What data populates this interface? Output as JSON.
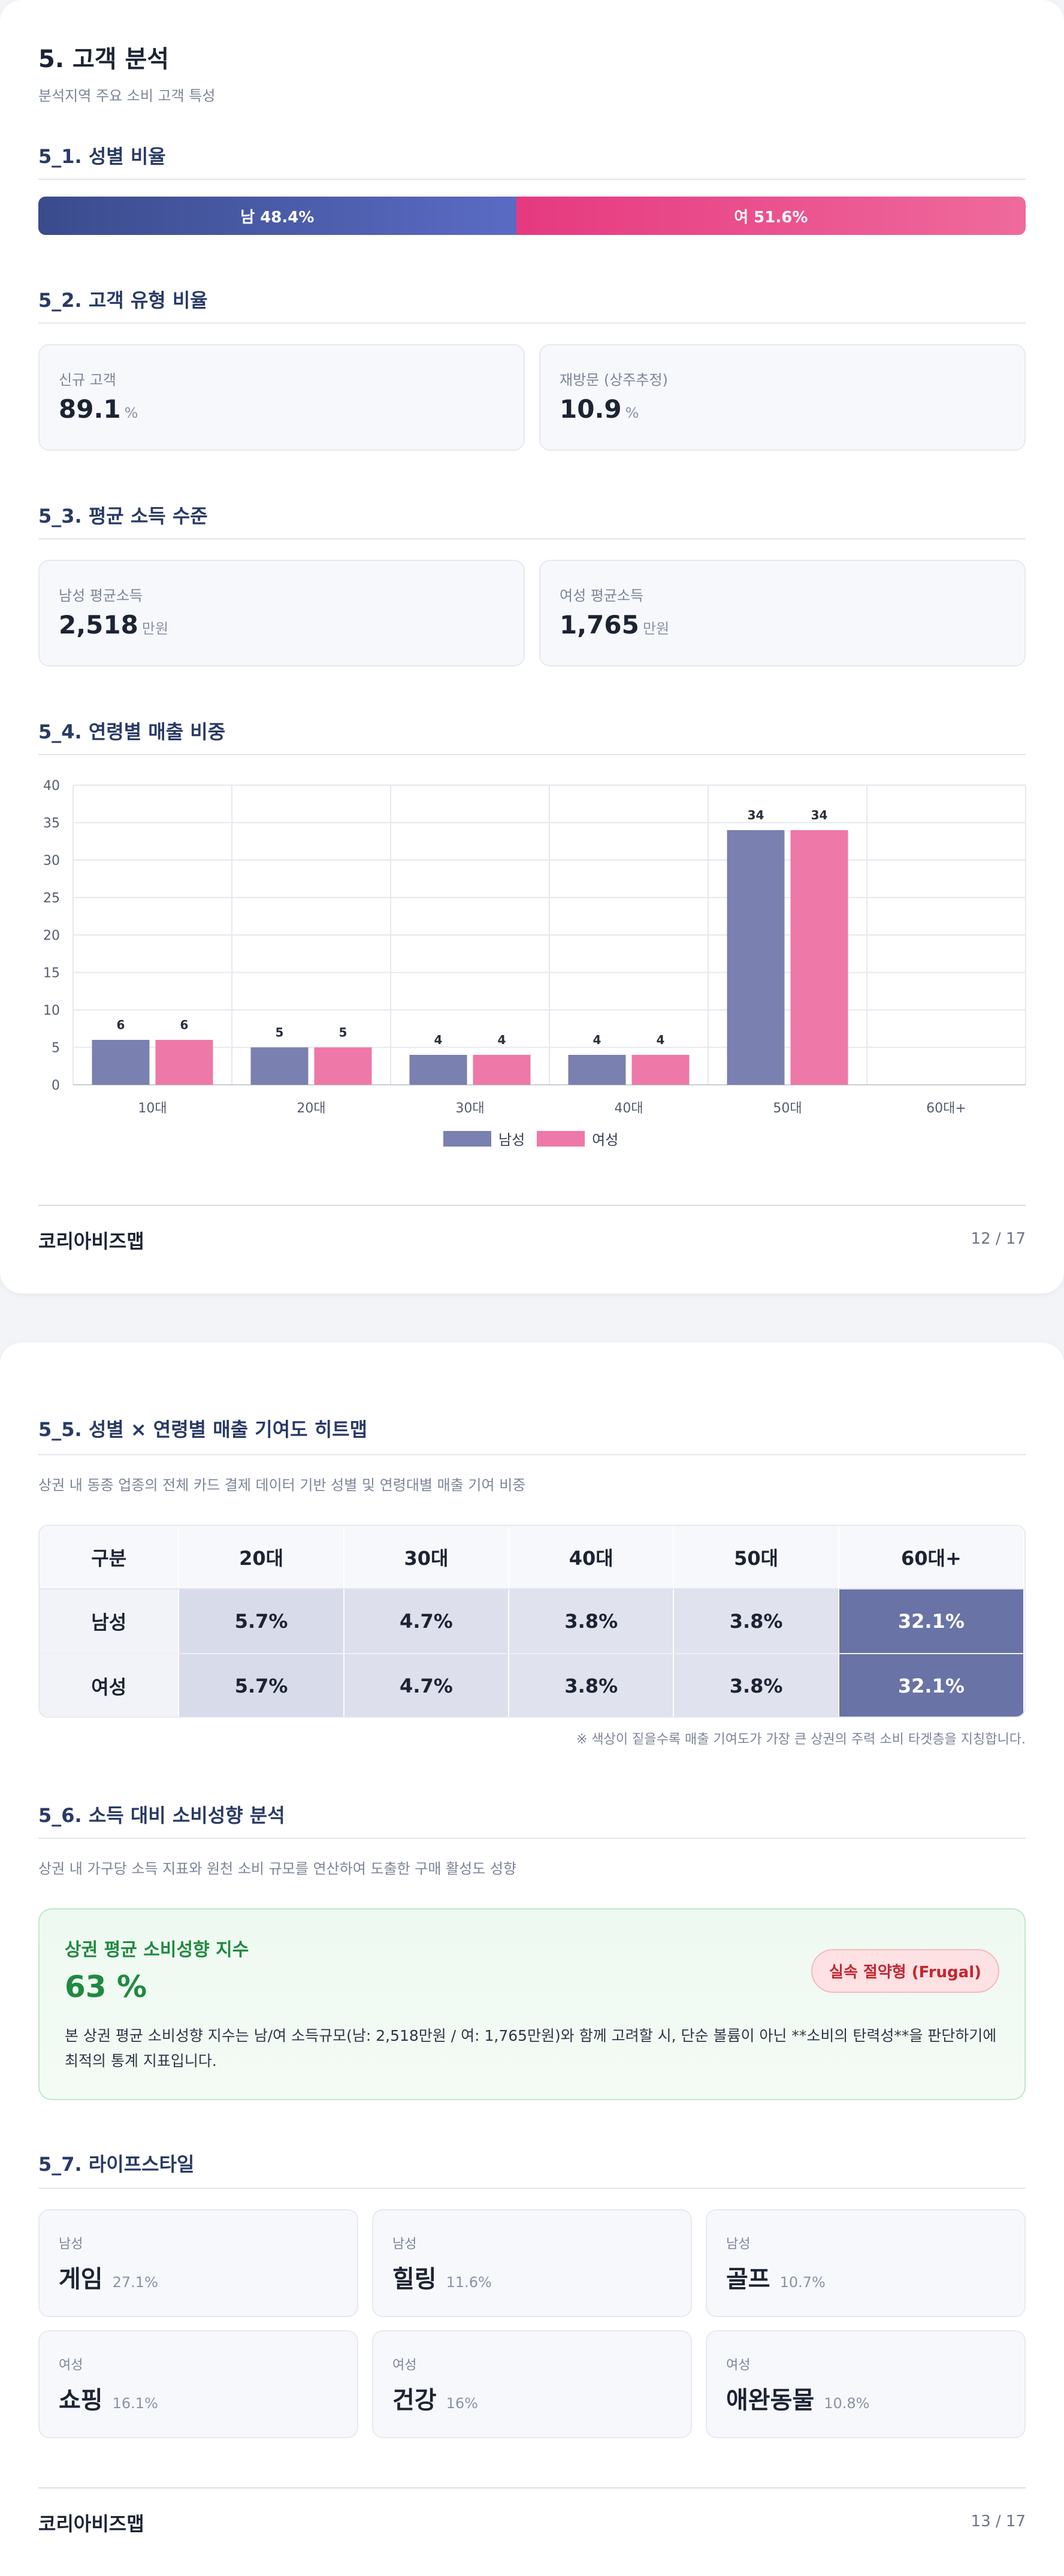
{
  "page1": {
    "title": "5. 고객 분석",
    "subtitle": "분석지역 주요 소비 고객 특성",
    "gender": {
      "section_title": "5_1. 성별 비율",
      "male_label": "남 48.4%",
      "female_label": "여 51.6%",
      "male_ratio": 48.4,
      "female_ratio": 51.6,
      "male_color": "#4b5aa8",
      "female_color": "#ea4a8a"
    },
    "customer_type": {
      "section_title": "5_2. 고객 유형 비율",
      "new_label": "신규 고객",
      "new_value": "89.1",
      "new_unit": "%",
      "return_label": "재방문 (상주추정)",
      "return_value": "10.9",
      "return_unit": "%"
    },
    "income": {
      "section_title": "5_3. 평균 소득 수준",
      "male_label": "남성 평균소득",
      "male_value": "2,518",
      "male_unit": "만원",
      "female_label": "여성 평균소득",
      "female_value": "1,765",
      "female_unit": "만원"
    },
    "age_sales": {
      "section_title": "5_4. 연령별 매출 비중"
    },
    "footer": {
      "brand": "코리아비즈맵",
      "page": "12 / 17"
    }
  },
  "chart_data": {
    "type": "bar",
    "title": "",
    "xlabel": "",
    "ylabel": "",
    "categories": [
      "10대",
      "20대",
      "30대",
      "40대",
      "50대",
      "60대+"
    ],
    "series": [
      {
        "name": "남성",
        "values": [
          6,
          5,
          4,
          4,
          34,
          0
        ],
        "color": "#7a80b0"
      },
      {
        "name": "여성",
        "values": [
          6,
          5,
          4,
          4,
          34,
          0
        ],
        "color": "#ee78a8"
      }
    ],
    "data_labels": [
      [
        "6",
        "5",
        "4",
        "4",
        "34",
        ""
      ],
      [
        "6",
        "5",
        "4",
        "4",
        "34",
        ""
      ]
    ],
    "ylim": [
      0,
      40
    ],
    "yticks": [
      0,
      5,
      10,
      15,
      20,
      25,
      30,
      35,
      40
    ],
    "grid": true,
    "legend": "bottom"
  },
  "page2": {
    "heatmap": {
      "section_title": "5_5. 성별 × 연령별 매출 기여도 히트맵",
      "description": "상권 내 동종 업종의 전체 카드 결제 데이터 기반 성별 및 연령대별 매출 기여 비중",
      "headers": [
        "구분",
        "20대",
        "30대",
        "40대",
        "50대",
        "60대+"
      ],
      "rows": [
        {
          "label": "남성",
          "values": [
            "5.7%",
            "4.7%",
            "3.8%",
            "3.8%",
            "32.1%"
          ]
        },
        {
          "label": "여성",
          "values": [
            "5.7%",
            "4.7%",
            "3.8%",
            "3.8%",
            "32.1%"
          ]
        }
      ],
      "cell_colors": [
        "#d8dbea",
        "#dddfec",
        "#e0e2ee",
        "#e0e2ee",
        "#6a73a6"
      ],
      "note": "※ 색상이 짙을수록 매출 기여도가 가장 큰 상권의 주력 소비 타겟층을 지칭합니다."
    },
    "spending": {
      "section_title": "5_6. 소득 대비 소비성향 분석",
      "description": "상권 내 가구당 소득 지표와 원천 소비 규모를 연산하여 도출한 구매 활성도 성향",
      "card_title": "상권 평균 소비성향 지수",
      "value": "63 %",
      "badge": "실속 절약형 (Frugal)",
      "text": "본 상권 평균 소비성향 지수는 남/여 소득규모(남: 2,518만원 / 여: 1,765만원)와 함께 고려할 시, 단순 볼륨이 아닌 **소비의 탄력성**을 판단하기에 최적의 통계 지표입니다."
    },
    "lifestyle": {
      "section_title": "5_7. 라이프스타일",
      "items": [
        {
          "gender": "남성",
          "name": "게임",
          "pct": "27.1%"
        },
        {
          "gender": "남성",
          "name": "힐링",
          "pct": "11.6%"
        },
        {
          "gender": "남성",
          "name": "골프",
          "pct": "10.7%"
        },
        {
          "gender": "여성",
          "name": "쇼핑",
          "pct": "16.1%"
        },
        {
          "gender": "여성",
          "name": "건강",
          "pct": "16%"
        },
        {
          "gender": "여성",
          "name": "애완동물",
          "pct": "10.8%"
        }
      ]
    },
    "footer": {
      "brand": "코리아비즈맵",
      "page": "13 / 17"
    }
  }
}
